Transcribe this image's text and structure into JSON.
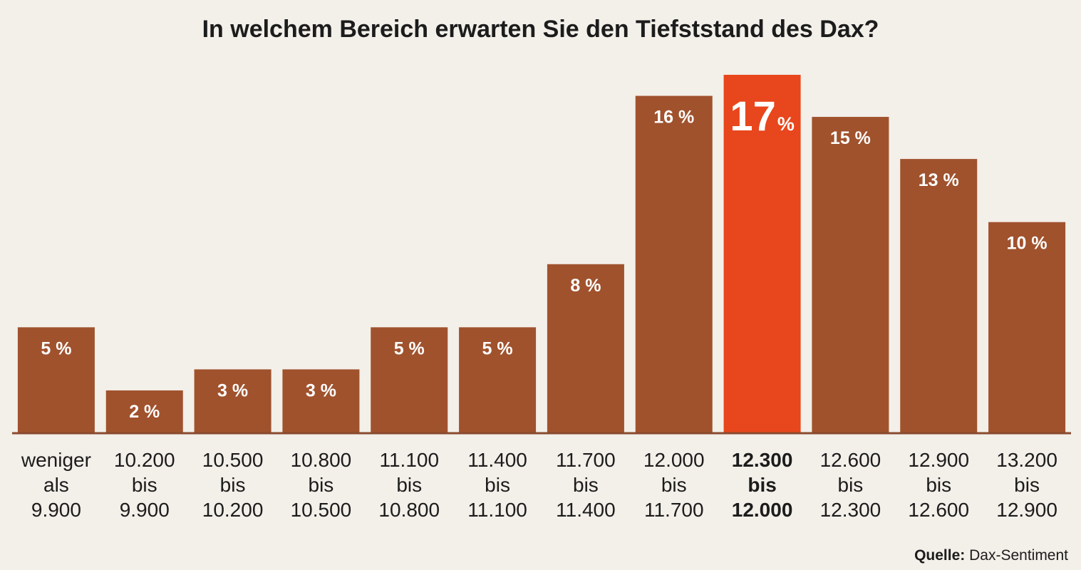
{
  "chart_data": {
    "type": "bar",
    "title": "In welchem Bereich erwarten Sie den Tiefststand des Dax?",
    "categories": [
      [
        "weniger",
        "als",
        "9.900"
      ],
      [
        "10.200",
        "bis",
        "9.900"
      ],
      [
        "10.500",
        "bis",
        "10.200"
      ],
      [
        "10.800",
        "bis",
        "10.500"
      ],
      [
        "11.100",
        "bis",
        "10.800"
      ],
      [
        "11.400",
        "bis",
        "11.100"
      ],
      [
        "11.700",
        "bis",
        "11.400"
      ],
      [
        "12.000",
        "bis",
        "11.700"
      ],
      [
        "12.300",
        "bis",
        "12.000"
      ],
      [
        "12.600",
        "bis",
        "12.300"
      ],
      [
        "12.900",
        "bis",
        "12.600"
      ],
      [
        "13.200",
        "bis",
        "12.900"
      ]
    ],
    "values": [
      5,
      2,
      3,
      3,
      5,
      5,
      8,
      16,
      17,
      15,
      13,
      10
    ],
    "value_labels": [
      "5 %",
      "2 %",
      "3 %",
      "3 %",
      "5 %",
      "5 %",
      "8 %",
      "16 %",
      "17",
      "15 %",
      "13 %",
      "10 %"
    ],
    "highlight_index": 8,
    "highlight_suffix": "%",
    "ylim": [
      0,
      17
    ],
    "colors": {
      "bar": "#a0522d",
      "highlight": "#e8461c",
      "baseline": "#8a4a2e"
    },
    "grid": false
  },
  "source": {
    "label": "Quelle:",
    "text": "Dax-Sentiment"
  }
}
